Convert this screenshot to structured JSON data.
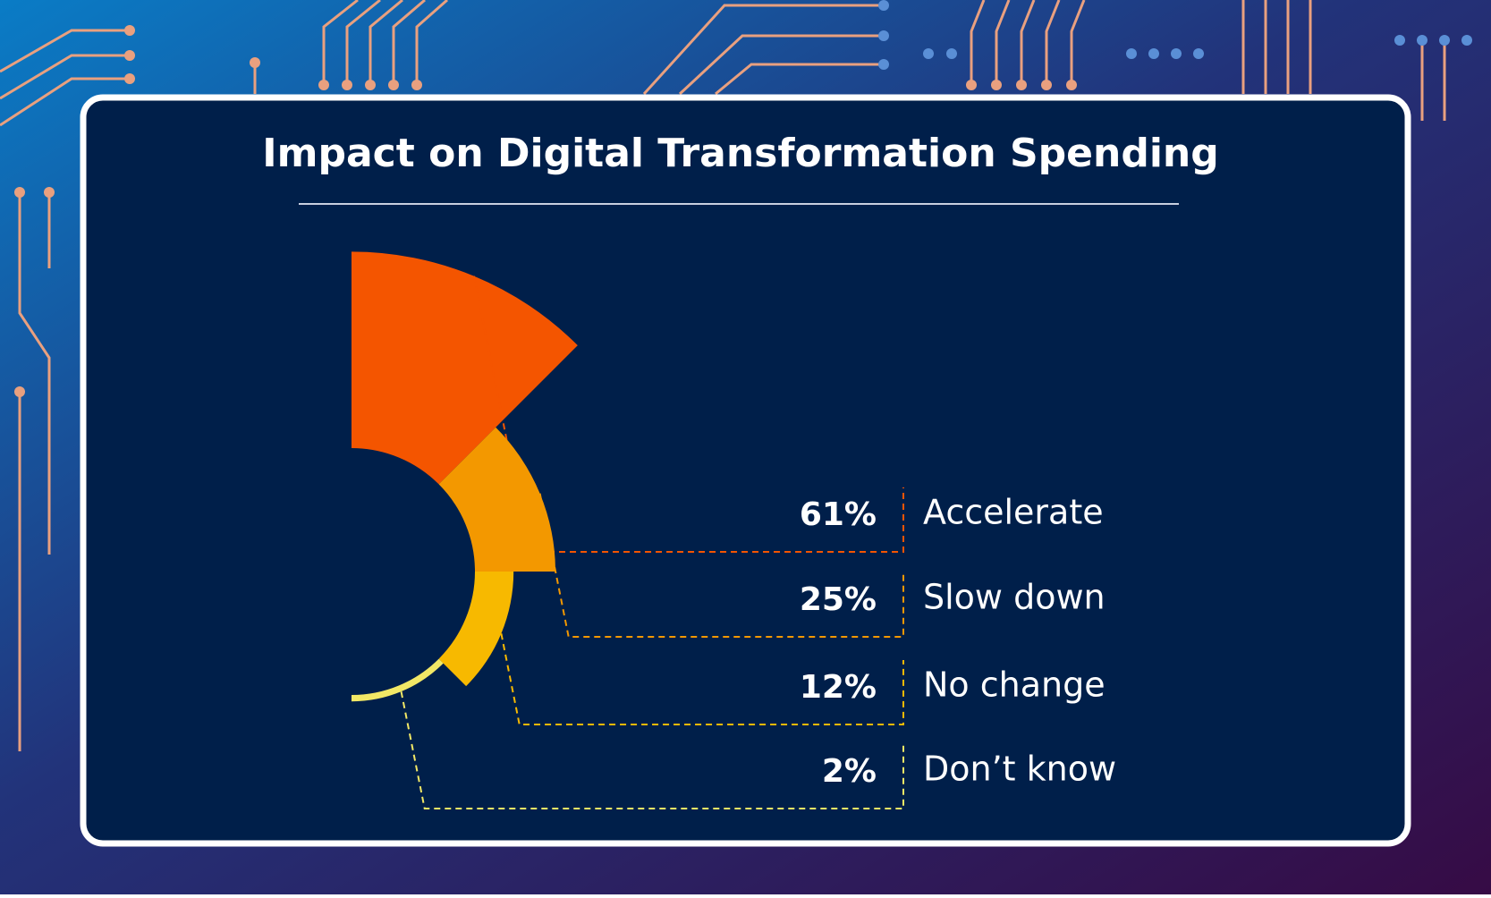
{
  "chart_data": {
    "type": "radial-bar",
    "title": "Impact on Digital Transformation Spending",
    "categories": [
      "Accelerate",
      "Slow down",
      "No change",
      "Don’t know"
    ],
    "values": [
      61,
      25,
      12,
      2
    ],
    "value_labels": [
      "61%",
      "25%",
      "12%",
      "2%"
    ],
    "colors": [
      "#f45500",
      "#f39800",
      "#f7b900",
      "#f2e866"
    ]
  }
}
